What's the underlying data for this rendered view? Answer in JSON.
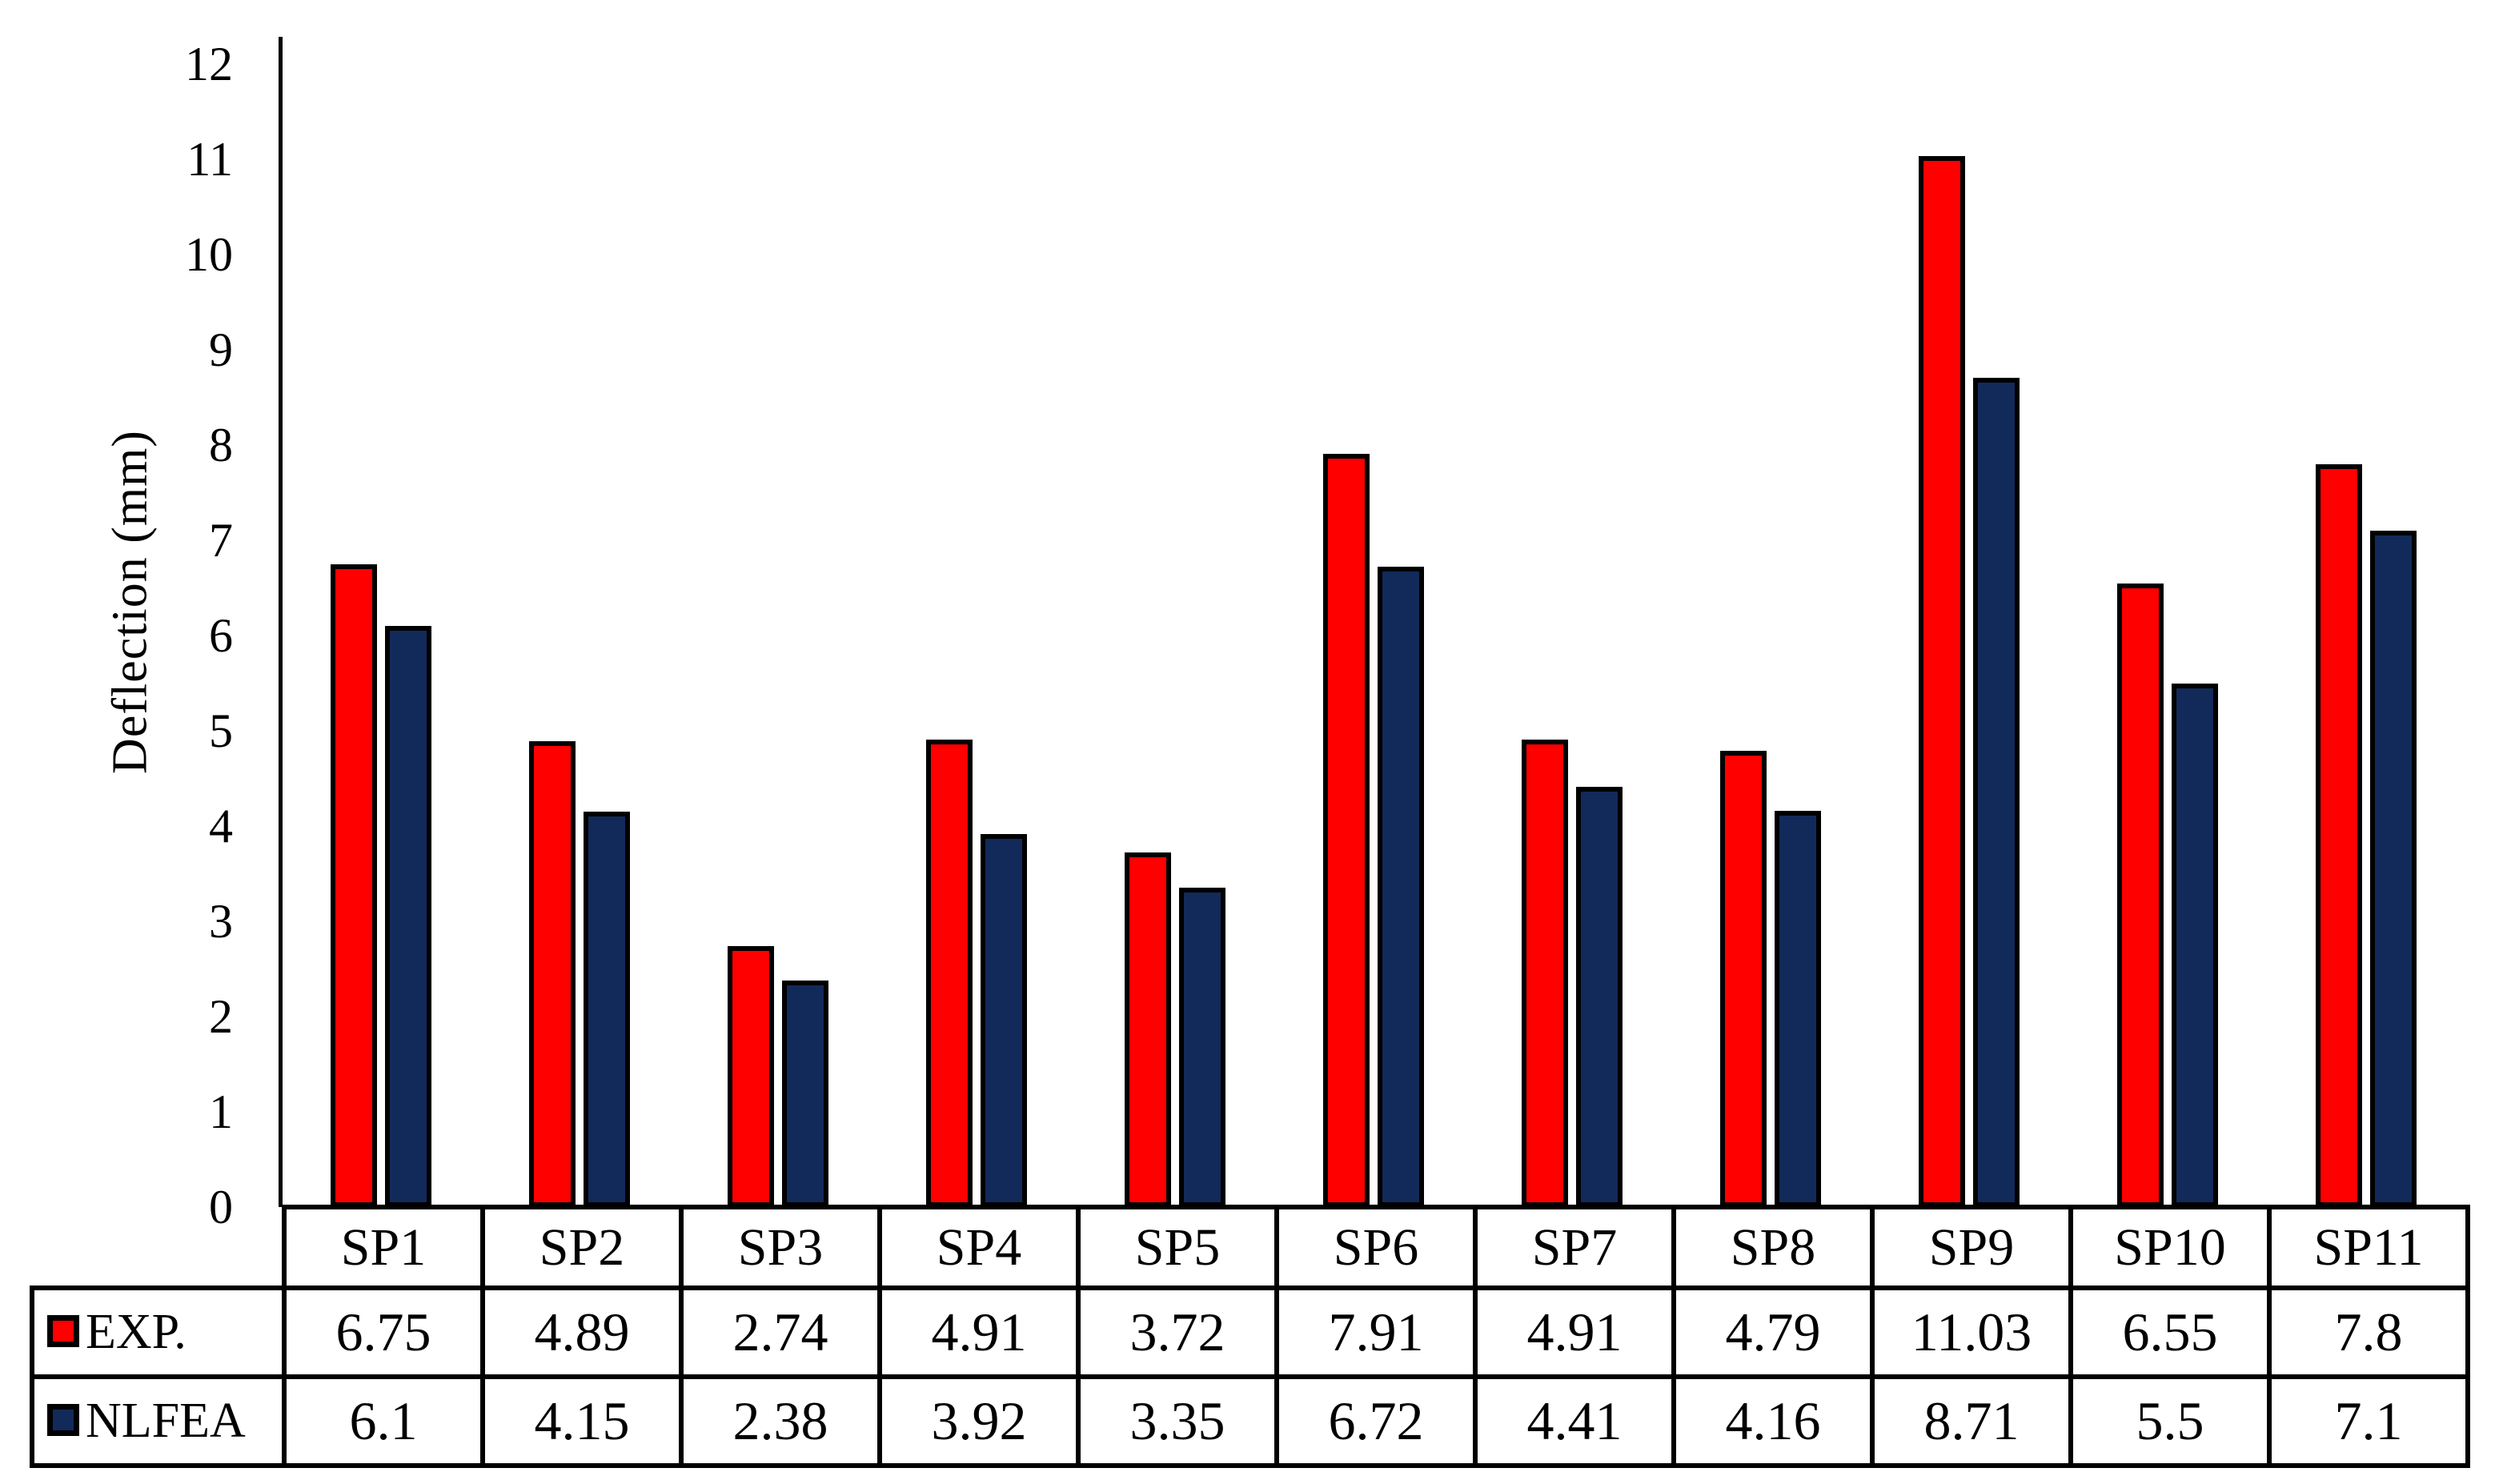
{
  "chart_data": {
    "type": "bar",
    "title": "",
    "xlabel": "",
    "ylabel": "Deflection (mm)",
    "ylim": [
      0,
      12
    ],
    "ytick_step": 1,
    "yticks": [
      0,
      1,
      2,
      3,
      4,
      5,
      6,
      7,
      8,
      9,
      10,
      11,
      12
    ],
    "grid": false,
    "legend_position": "data-table-left",
    "bar_outline_color": "#000000",
    "show_data_table": true,
    "categories": [
      "SP1",
      "SP2",
      "SP3",
      "SP4",
      "SP5",
      "SP6",
      "SP7",
      "SP8",
      "SP9",
      "SP10",
      "SP11"
    ],
    "series": [
      {
        "name": "EXP.",
        "color": "#fe0000",
        "values": [
          6.75,
          4.89,
          2.74,
          4.91,
          3.72,
          7.91,
          4.91,
          4.79,
          11.03,
          6.55,
          7.8
        ]
      },
      {
        "name": "NLFEA",
        "color": "#122a5a",
        "values": [
          6.1,
          4.15,
          2.38,
          3.92,
          3.35,
          6.72,
          4.41,
          4.16,
          8.71,
          5.5,
          7.1
        ]
      }
    ]
  }
}
